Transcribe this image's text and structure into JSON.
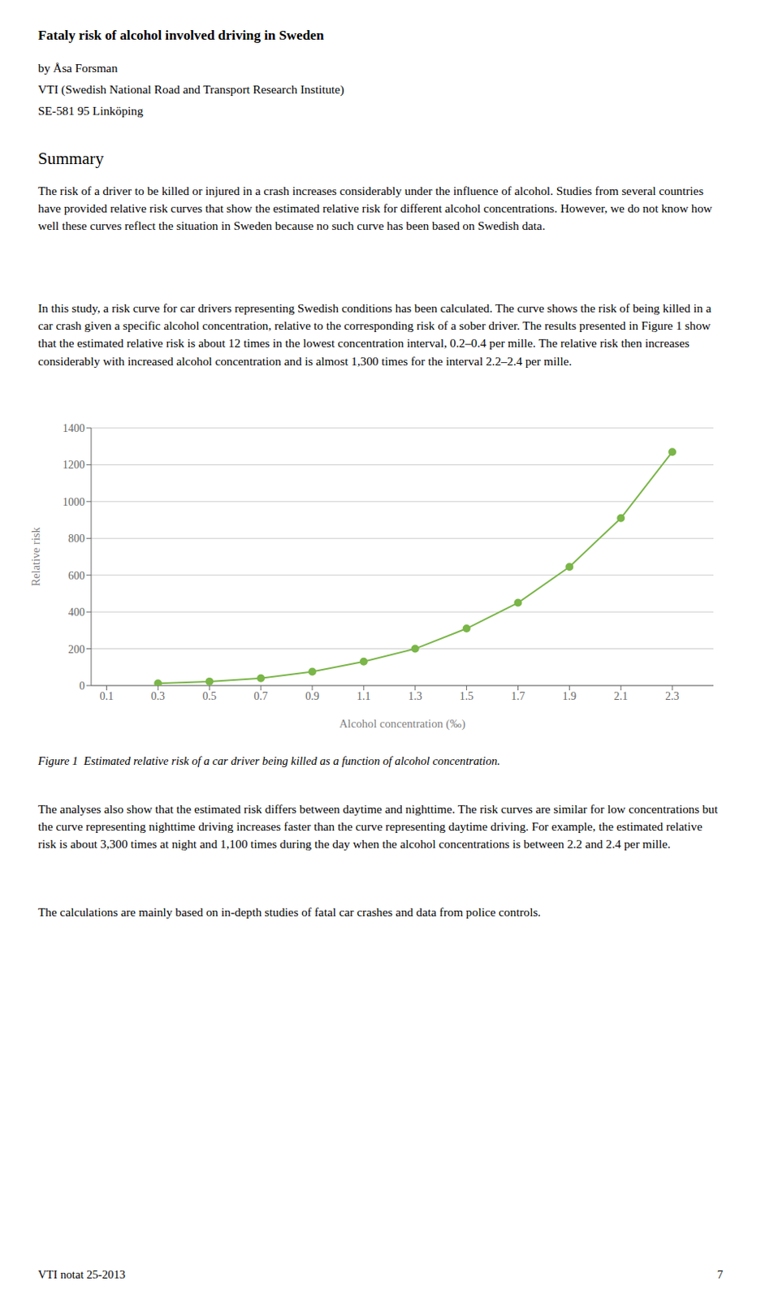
{
  "chart_data": {
    "type": "line",
    "annotations": [
      "Fataly risk of alcohol involved driving in Sweden",
      "by Åsa Forsman",
      "VTI (Swedish National Road and Transport Research Institute)",
      "SE-581 95 Linköping",
      "Summary",
      "The risk of a driver to be killed or injured in a crash increases considerably under the influence of alcohol. Studies from several countries have provided relative risk curves that show the estimated relative risk for different alcohol concentrations. However, we do not know how well these curves reflect the situation in Sweden because no such curve has been based on Swedish data.",
      "In this study, a risk curve for car drivers representing Swedish conditions has been calculated. The curve shows the risk of being killed in a car crash given a specific alcohol concentration, relative to the corresponding risk of a sober driver. The results presented in Figure 1 show that the estimated relative risk is about 12 times in the lowest concentration interval, 0.2–0.4 per mille. The relative risk then increases considerably with increased alcohol concentration and is almost 1,300 times for the interval 2.2–2.4 per mille.",
      "Figure 1  Estimated relative risk of a car driver being killed as a function of alcohol concentration.",
      "The analyses also show that the estimated risk differs between daytime and nighttime. The risk curves are similar for low concentrations but the curve representing nighttime driving increases faster than the curve representing daytime driving. For example, the estimated relative risk is about 3,300 times at night and 1,100 times during the day when the alcohol concentrations is between 2.2 and 2.4 per mille.",
      "The calculations are mainly based on in-depth studies of fatal car crashes and data from police controls.",
      "VTI notat 25-2013",
      "7"
    ],
    "x": [
      0.3,
      0.5,
      0.7,
      0.9,
      1.1,
      1.3,
      1.5,
      1.7,
      1.9,
      2.1,
      2.3
    ],
    "values": [
      12,
      22,
      40,
      75,
      130,
      200,
      310,
      450,
      645,
      910,
      1270
    ],
    "xlim": [
      0.04,
      2.46
    ],
    "xticks": [
      0.1,
      0.3,
      0.5,
      0.7,
      0.9,
      1.1,
      1.3,
      1.5,
      1.7,
      1.9,
      2.1,
      2.3
    ],
    "ylim": [
      0,
      1400
    ],
    "yticks": [
      0,
      200,
      400,
      600,
      800,
      1000,
      1200,
      1400
    ],
    "x_label": "Alcohol concentration (‰)",
    "y_label": "Relative risk",
    "color": "#7ab648",
    "marker": "o",
    "grid": true
  }
}
